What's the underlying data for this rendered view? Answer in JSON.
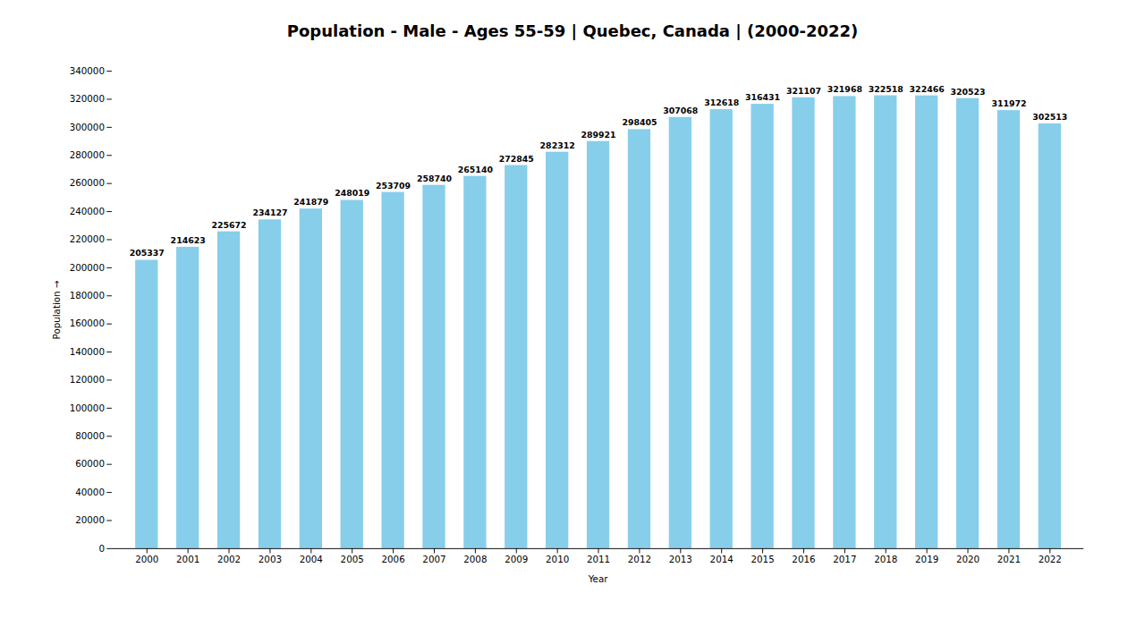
{
  "chart_data": {
    "type": "bar",
    "title": "Population - Male - Ages 55-59 | Quebec, Canada |  (2000-2022)",
    "categories": [
      "2000",
      "2001",
      "2002",
      "2003",
      "2004",
      "2005",
      "2006",
      "2007",
      "2008",
      "2009",
      "2010",
      "2011",
      "2012",
      "2013",
      "2014",
      "2015",
      "2016",
      "2017",
      "2018",
      "2019",
      "2020",
      "2021",
      "2022"
    ],
    "values": [
      205337,
      214623,
      225672,
      234127,
      241879,
      248019,
      253709,
      258740,
      265140,
      272845,
      282312,
      289921,
      298405,
      307068,
      312618,
      316431,
      321107,
      321968,
      322518,
      322466,
      320523,
      311972,
      302513
    ],
    "color": "#87CEEB",
    "xlabel": "Year",
    "ylabel": "Population",
    "ylim": [
      0,
      340000
    ],
    "yticks": [
      0,
      20000,
      40000,
      60000,
      80000,
      100000,
      120000,
      140000,
      160000,
      180000,
      200000,
      220000,
      240000,
      260000,
      280000,
      300000,
      320000,
      340000
    ],
    "grid": false,
    "data_labels": true
  }
}
